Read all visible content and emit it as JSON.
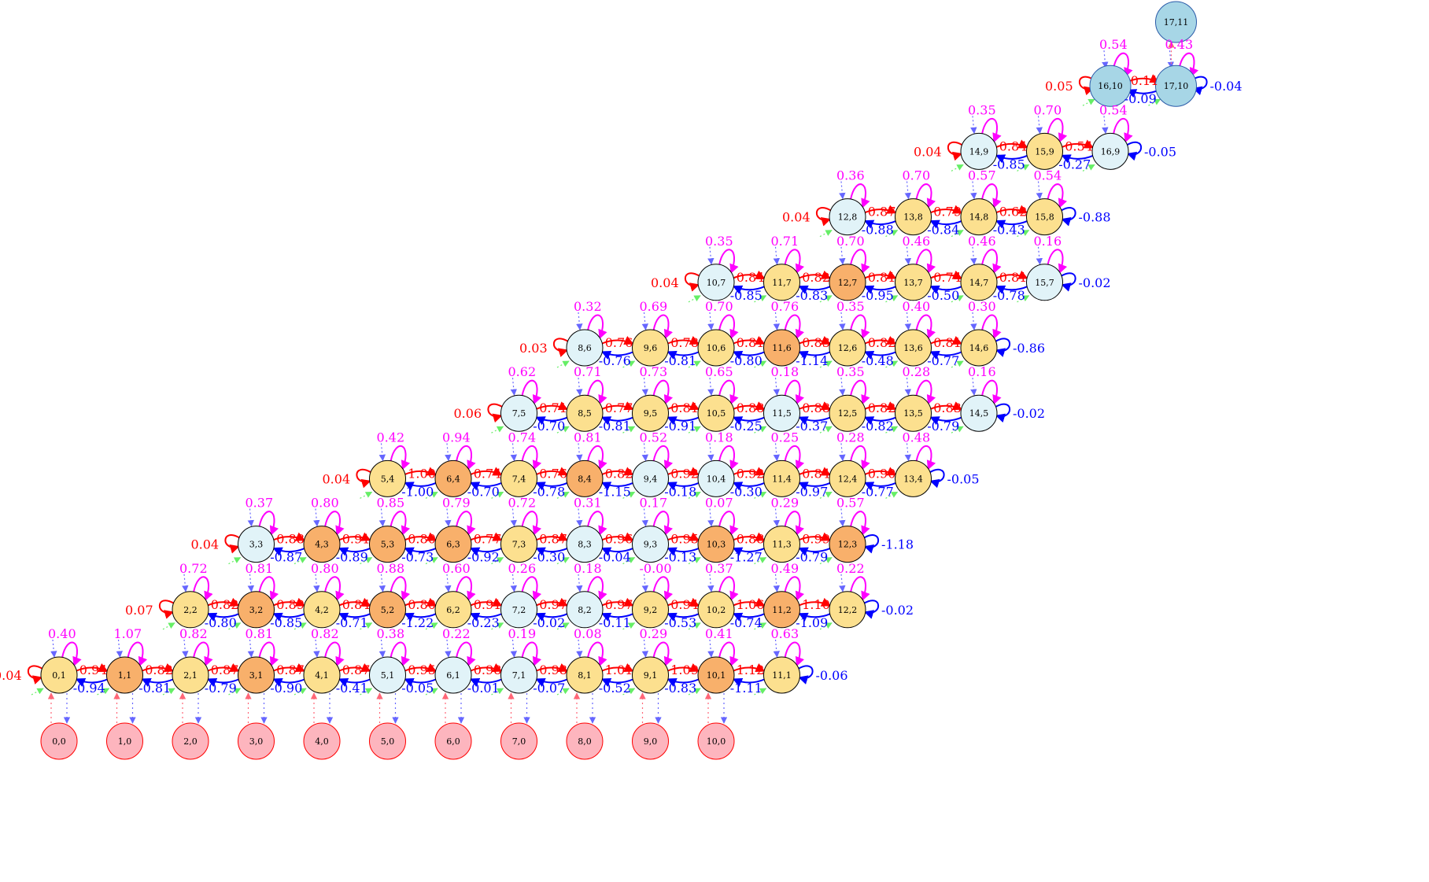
{
  "colors": {
    "yellow": "#fce08f",
    "orange": "#f8b06b",
    "lightblue": "#e1f3f8",
    "steelblue": "#a7d6e6",
    "pink": "#fdb5be",
    "red": "#ff0000",
    "blue": "#0000ff",
    "magenta": "#ff00ff",
    "green": "#66ee66",
    "purple": "#6666ff"
  },
  "grid": {
    "max_row": 11,
    "input_row": 0
  },
  "nodes": [
    {
      "label": "0,0",
      "fill": "pink"
    },
    {
      "label": "1,0",
      "fill": "pink"
    },
    {
      "label": "2,0",
      "fill": "pink"
    },
    {
      "label": "3,0",
      "fill": "pink"
    },
    {
      "label": "4,0",
      "fill": "pink"
    },
    {
      "label": "5,0",
      "fill": "pink"
    },
    {
      "label": "6,0",
      "fill": "pink"
    },
    {
      "label": "7,0",
      "fill": "pink"
    },
    {
      "label": "8,0",
      "fill": "pink"
    },
    {
      "label": "9,0",
      "fill": "pink"
    },
    {
      "label": "10,0",
      "fill": "pink"
    },
    {
      "label": "0,1",
      "fill": "yellow"
    },
    {
      "label": "1,1",
      "fill": "orange"
    },
    {
      "label": "2,1",
      "fill": "yellow"
    },
    {
      "label": "3,1",
      "fill": "orange"
    },
    {
      "label": "4,1",
      "fill": "yellow"
    },
    {
      "label": "5,1",
      "fill": "lightblue"
    },
    {
      "label": "6,1",
      "fill": "lightblue"
    },
    {
      "label": "7,1",
      "fill": "lightblue"
    },
    {
      "label": "8,1",
      "fill": "yellow"
    },
    {
      "label": "9,1",
      "fill": "yellow"
    },
    {
      "label": "10,1",
      "fill": "orange"
    },
    {
      "label": "11,1",
      "fill": "yellow"
    },
    {
      "label": "2,2",
      "fill": "yellow"
    },
    {
      "label": "3,2",
      "fill": "orange"
    },
    {
      "label": "4,2",
      "fill": "yellow"
    },
    {
      "label": "5,2",
      "fill": "orange"
    },
    {
      "label": "6,2",
      "fill": "yellow"
    },
    {
      "label": "7,2",
      "fill": "lightblue"
    },
    {
      "label": "8,2",
      "fill": "lightblue"
    },
    {
      "label": "9,2",
      "fill": "yellow"
    },
    {
      "label": "10,2",
      "fill": "yellow"
    },
    {
      "label": "11,2",
      "fill": "orange"
    },
    {
      "label": "12,2",
      "fill": "yellow"
    },
    {
      "label": "3,3",
      "fill": "lightblue"
    },
    {
      "label": "4,3",
      "fill": "orange"
    },
    {
      "label": "5,3",
      "fill": "orange"
    },
    {
      "label": "6,3",
      "fill": "orange"
    },
    {
      "label": "7,3",
      "fill": "yellow"
    },
    {
      "label": "8,3",
      "fill": "lightblue"
    },
    {
      "label": "9,3",
      "fill": "lightblue"
    },
    {
      "label": "10,3",
      "fill": "orange"
    },
    {
      "label": "11,3",
      "fill": "yellow"
    },
    {
      "label": "12,3",
      "fill": "orange"
    },
    {
      "label": "5,4",
      "fill": "yellow"
    },
    {
      "label": "6,4",
      "fill": "orange"
    },
    {
      "label": "7,4",
      "fill": "yellow"
    },
    {
      "label": "8,4",
      "fill": "orange"
    },
    {
      "label": "9,4",
      "fill": "lightblue"
    },
    {
      "label": "10,4",
      "fill": "lightblue"
    },
    {
      "label": "11,4",
      "fill": "yellow"
    },
    {
      "label": "12,4",
      "fill": "yellow"
    },
    {
      "label": "13,4",
      "fill": "yellow"
    },
    {
      "label": "7,5",
      "fill": "lightblue"
    },
    {
      "label": "8,5",
      "fill": "yellow"
    },
    {
      "label": "9,5",
      "fill": "yellow"
    },
    {
      "label": "10,5",
      "fill": "yellow"
    },
    {
      "label": "11,5",
      "fill": "lightblue"
    },
    {
      "label": "12,5",
      "fill": "yellow"
    },
    {
      "label": "13,5",
      "fill": "yellow"
    },
    {
      "label": "14,5",
      "fill": "lightblue"
    },
    {
      "label": "8,6",
      "fill": "lightblue"
    },
    {
      "label": "9,6",
      "fill": "yellow"
    },
    {
      "label": "10,6",
      "fill": "yellow"
    },
    {
      "label": "11,6",
      "fill": "orange"
    },
    {
      "label": "12,6",
      "fill": "yellow"
    },
    {
      "label": "13,6",
      "fill": "yellow"
    },
    {
      "label": "14,6",
      "fill": "yellow"
    },
    {
      "label": "10,7",
      "fill": "lightblue"
    },
    {
      "label": "11,7",
      "fill": "yellow"
    },
    {
      "label": "12,7",
      "fill": "orange"
    },
    {
      "label": "13,7",
      "fill": "yellow"
    },
    {
      "label": "14,7",
      "fill": "yellow"
    },
    {
      "label": "15,7",
      "fill": "lightblue"
    },
    {
      "label": "12,8",
      "fill": "lightblue"
    },
    {
      "label": "13,8",
      "fill": "yellow"
    },
    {
      "label": "14,8",
      "fill": "yellow"
    },
    {
      "label": "15,8",
      "fill": "yellow"
    },
    {
      "label": "14,9",
      "fill": "lightblue"
    },
    {
      "label": "15,9",
      "fill": "yellow"
    },
    {
      "label": "16,9",
      "fill": "lightblue"
    },
    {
      "label": "16,10",
      "fill": "steelblue"
    },
    {
      "label": "17,10",
      "fill": "steelblue"
    },
    {
      "label": "17,11",
      "fill": "steelblue"
    }
  ],
  "rows": [
    {
      "row": 1,
      "left_self": "0.04",
      "self_vals": [
        "0.40",
        "1.07",
        "0.82",
        "0.81",
        "0.82",
        "0.38",
        "0.22",
        "0.19",
        "0.08",
        "0.29",
        "0.41",
        "0.63"
      ],
      "fwd": [
        "0.94",
        "0.82",
        "0.87",
        "0.87",
        "0.87",
        "0.95",
        "0.98",
        "0.98",
        "1.01",
        "1.09",
        "1.12"
      ],
      "back": [
        "-0.94",
        "-0.81",
        "-0.79",
        "-0.90",
        "-0.41",
        "-0.05",
        "-0.01",
        "-0.07",
        "-0.52",
        "-0.83",
        "-1.11"
      ],
      "right_self": "-0.06"
    },
    {
      "row": 2,
      "left_self": "0.07",
      "self_vals": [
        "0.72",
        "0.81",
        "0.80",
        "0.88",
        "0.60",
        "0.26",
        "0.18",
        "-0.00",
        "0.37",
        "0.49",
        "0.22"
      ],
      "fwd": [
        "0.82",
        "0.89",
        "0.84",
        "0.80",
        "0.91",
        "0.97",
        "0.97",
        "0.94",
        "1.06",
        "1.10"
      ],
      "back": [
        "-0.80",
        "-0.85",
        "-0.71",
        "-1.22",
        "-0.23",
        "-0.02",
        "-0.11",
        "-0.53",
        "-0.74",
        "-1.09"
      ],
      "right_self": "-0.02"
    },
    {
      "row": 3,
      "left_self": "0.04",
      "self_vals": [
        "0.37",
        "0.80",
        "0.85",
        "0.79",
        "0.72",
        "0.31",
        "0.17",
        "0.07",
        "0.29",
        "0.57"
      ],
      "fwd": [
        "0.88",
        "0.91",
        "0.80",
        "0.77",
        "0.87",
        "0.96",
        "0.95",
        "0.88",
        "0.99"
      ],
      "back": [
        "-0.87",
        "-0.89",
        "-0.73",
        "-0.92",
        "-0.30",
        "-0.04",
        "-0.13",
        "-1.27",
        "-0.79"
      ],
      "right_self": "-1.18"
    },
    {
      "row": 4,
      "left_self": "0.04",
      "self_vals": [
        "0.42",
        "0.94",
        "0.74",
        "0.81",
        "0.52",
        "0.18",
        "0.25",
        "0.28",
        "0.48"
      ],
      "fwd": [
        "1.00",
        "0.74",
        "0.76",
        "0.82",
        "0.92",
        "0.92",
        "0.84",
        "0.90"
      ],
      "back": [
        "-1.00",
        "-0.70",
        "-0.78",
        "-1.15",
        "-0.18",
        "-0.30",
        "-0.97",
        "-0.77"
      ],
      "right_self": "-0.05"
    },
    {
      "row": 5,
      "left_self": "0.06",
      "self_vals": [
        "0.62",
        "0.71",
        "0.73",
        "0.65",
        "0.18",
        "0.35",
        "0.28",
        "0.16"
      ],
      "fwd": [
        "0.71",
        "0.77",
        "0.81",
        "0.88",
        "0.88",
        "0.82",
        "0.83"
      ],
      "back": [
        "-0.70",
        "-0.81",
        "-0.91",
        "-0.25",
        "-0.37",
        "-0.82",
        "-0.79"
      ],
      "right_self": "-0.02"
    },
    {
      "row": 6,
      "left_self": "0.03",
      "self_vals": [
        "0.32",
        "0.69",
        "0.70",
        "0.76",
        "0.35",
        "0.40",
        "0.30"
      ],
      "fwd": [
        "0.76",
        "0.78",
        "0.81",
        "0.83",
        "0.82",
        "0.81"
      ],
      "back": [
        "-0.76",
        "-0.81",
        "-0.80",
        "-1.14",
        "-0.48",
        "-0.77"
      ],
      "right_self": "-0.86"
    },
    {
      "row": 7,
      "left_self": "0.04",
      "self_vals": [
        "0.35",
        "0.71",
        "0.70",
        "0.46",
        "0.46",
        "0.16"
      ],
      "fwd": [
        "0.84",
        "0.82",
        "0.81",
        "0.74",
        "0.81"
      ],
      "back": [
        "-0.85",
        "-0.83",
        "-0.95",
        "-0.50",
        "-0.78"
      ],
      "right_self": "-0.02"
    },
    {
      "row": 8,
      "left_self": "0.04",
      "self_vals": [
        "0.36",
        "0.70",
        "0.57",
        "0.54"
      ],
      "fwd": [
        "0.87",
        "0.79",
        "0.62"
      ],
      "back": [
        "-0.88",
        "-0.84",
        "-0.43"
      ],
      "right_self": "-0.88"
    },
    {
      "row": 9,
      "left_self": "0.04",
      "self_vals": [
        "0.35",
        "0.70",
        "0.54"
      ],
      "fwd": [
        "0.84",
        "0.54"
      ],
      "back": [
        "-0.85",
        "-0.27"
      ],
      "right_self": "-0.05"
    },
    {
      "row": 10,
      "left_self": "0.05",
      "self_vals": [
        "0.54",
        "0.43"
      ],
      "fwd": [
        "0.11"
      ],
      "back": [
        "-0.09"
      ],
      "right_self": "-0.04"
    }
  ]
}
